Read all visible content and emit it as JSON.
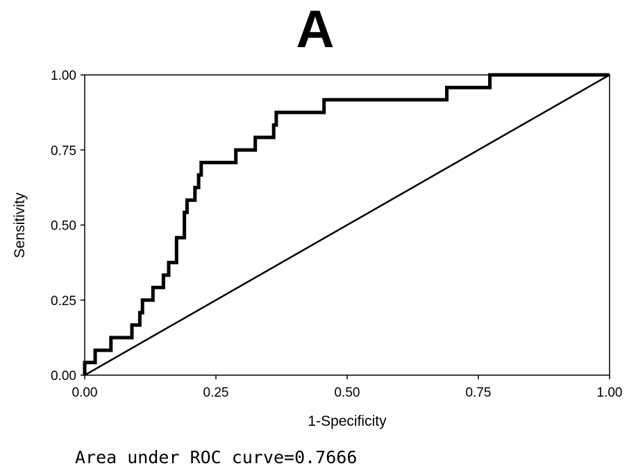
{
  "chart_data": {
    "type": "line",
    "title": "A",
    "xlabel": "1-Specificity",
    "ylabel": "Sensitivity",
    "xlim": [
      0,
      1
    ],
    "ylim": [
      0,
      1
    ],
    "x_ticks": [
      "0.00",
      "0.25",
      "0.50",
      "0.75",
      "1.00"
    ],
    "y_ticks": [
      "0.00",
      "0.25",
      "0.50",
      "0.75",
      "1.00"
    ],
    "grid": false,
    "legend": "none",
    "annotation": "Area under ROC curve=0.7666",
    "series": [
      {
        "points": [
          [
            0,
            0
          ],
          [
            0,
            0.042
          ],
          [
            0.02,
            0.042
          ],
          [
            0.02,
            0.083
          ],
          [
            0.05,
            0.083
          ],
          [
            0.05,
            0.125
          ],
          [
            0.09,
            0.125
          ],
          [
            0.09,
            0.167
          ],
          [
            0.105,
            0.167
          ],
          [
            0.105,
            0.208
          ],
          [
            0.11,
            0.208
          ],
          [
            0.11,
            0.25
          ],
          [
            0.13,
            0.25
          ],
          [
            0.13,
            0.292
          ],
          [
            0.15,
            0.292
          ],
          [
            0.15,
            0.333
          ],
          [
            0.16,
            0.333
          ],
          [
            0.16,
            0.375
          ],
          [
            0.175,
            0.375
          ],
          [
            0.175,
            0.458
          ],
          [
            0.19,
            0.458
          ],
          [
            0.19,
            0.542
          ],
          [
            0.195,
            0.542
          ],
          [
            0.195,
            0.583
          ],
          [
            0.21,
            0.583
          ],
          [
            0.21,
            0.625
          ],
          [
            0.217,
            0.625
          ],
          [
            0.217,
            0.667
          ],
          [
            0.222,
            0.667
          ],
          [
            0.222,
            0.708
          ],
          [
            0.288,
            0.708
          ],
          [
            0.288,
            0.75
          ],
          [
            0.325,
            0.75
          ],
          [
            0.325,
            0.792
          ],
          [
            0.36,
            0.792
          ],
          [
            0.36,
            0.833
          ],
          [
            0.365,
            0.833
          ],
          [
            0.365,
            0.875
          ],
          [
            0.456,
            0.875
          ],
          [
            0.456,
            0.917
          ],
          [
            0.69,
            0.917
          ],
          [
            0.69,
            0.958
          ],
          [
            0.772,
            0.958
          ],
          [
            0.772,
            1
          ],
          [
            1,
            1
          ]
        ]
      },
      {
        "points": [
          [
            0,
            0
          ],
          [
            1,
            1
          ]
        ]
      }
    ]
  },
  "colors": {
    "line": "#000000",
    "background": "#ffffff"
  }
}
